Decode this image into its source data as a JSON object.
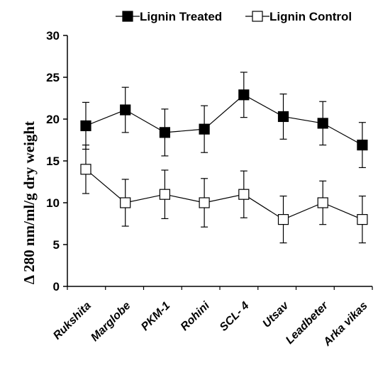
{
  "chart_data": {
    "type": "line",
    "ylabel": "Δ 280 nm/ml/g dry weight",
    "xlabel": "",
    "ylim": [
      0,
      30
    ],
    "yticks": [
      0,
      5,
      10,
      15,
      20,
      25,
      30
    ],
    "categories": [
      "Rukshita",
      "Marglobe",
      "PKM-1",
      "Rohini",
      "SCL- 4",
      "Utsav",
      "Leadbeter",
      "Arka vikas"
    ],
    "legend_position": "top",
    "grid": false,
    "series": [
      {
        "name": "Lignin Treated",
        "marker": "filled-square",
        "color": "#000000",
        "values": [
          19.2,
          21.1,
          18.4,
          18.8,
          22.9,
          20.3,
          19.5,
          16.9
        ],
        "error": [
          2.8,
          2.7,
          2.8,
          2.8,
          2.7,
          2.7,
          2.6,
          2.7
        ]
      },
      {
        "name": "Lignin Control",
        "marker": "open-square",
        "color": "#000000",
        "values": [
          14.0,
          10.0,
          11.0,
          10.0,
          11.0,
          8.0,
          10.0,
          8.0
        ],
        "error": [
          2.9,
          2.8,
          2.9,
          2.9,
          2.8,
          2.8,
          2.6,
          2.8
        ]
      }
    ]
  }
}
